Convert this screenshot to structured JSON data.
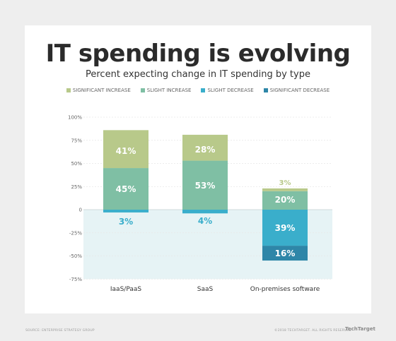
{
  "chart_data": {
    "type": "bar",
    "stacked": true,
    "title": "IT spending is evolving",
    "subtitle": "Percent expecting change in IT spending by type",
    "categories": [
      "IaaS/PaaS",
      "SaaS",
      "On-premises software"
    ],
    "series": [
      {
        "name": "SIGNIFICANT INCREASE",
        "color": "#b8c98a",
        "values": [
          41,
          28,
          3
        ]
      },
      {
        "name": "SLIGHT INCREASE",
        "color": "#7fbfa4",
        "values": [
          45,
          53,
          20
        ]
      },
      {
        "name": "SLIGHT DECREASE",
        "color": "#3aaecb",
        "values": [
          -3,
          -4,
          -39
        ]
      },
      {
        "name": "SIGNIFICANT DECREASE",
        "color": "#2e86a8",
        "values": [
          0,
          0,
          -16
        ]
      }
    ],
    "data_labels": [
      [
        "41%",
        "45%",
        "3%"
      ],
      [
        "28%",
        "53%",
        "4%"
      ],
      [
        "3%",
        "20%",
        "39%",
        "16%"
      ]
    ],
    "yticks": [
      "100%",
      "75%",
      "50%",
      "25%",
      "0",
      "-25%",
      "-50%",
      "-75%"
    ],
    "ytick_values": [
      100,
      75,
      50,
      25,
      0,
      -25,
      -50,
      -75
    ],
    "ylim": [
      -75,
      100
    ],
    "legend_position": "top-center",
    "negative_region_color": "#e6f3f5"
  },
  "footer": {
    "source": "SOURCE: ENTERPRISE STRATEGY GROUP",
    "copyright": "©2018 TECHTARGET. ALL RIGHTS RESERVED",
    "logo": "TechTarget"
  }
}
